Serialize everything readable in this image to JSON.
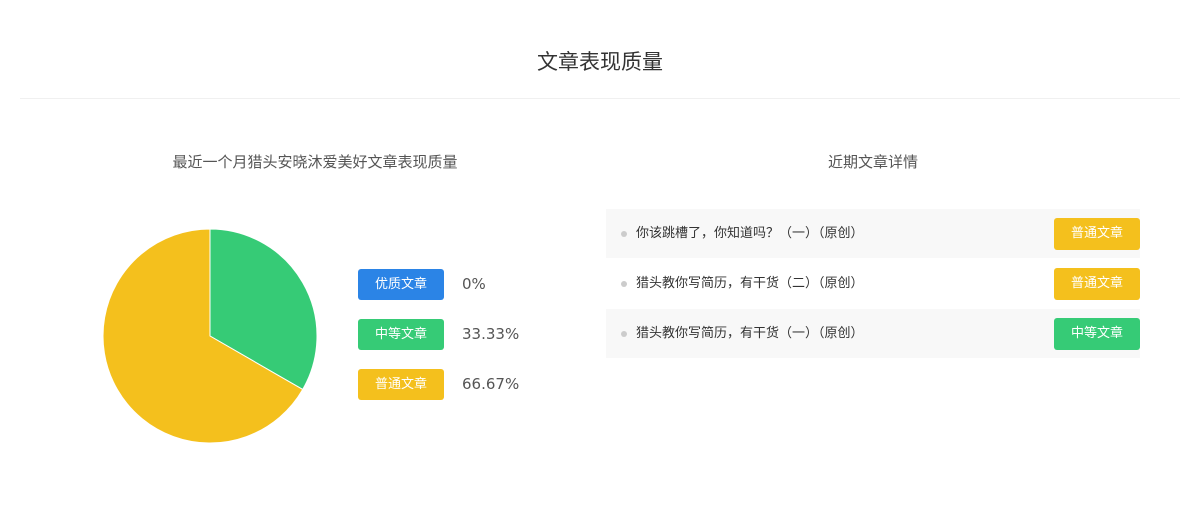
{
  "header": {
    "title": "文章表现质量"
  },
  "chart_data": {
    "type": "pie",
    "title": "最近一个月猎头安晓沐爱美好文章表现质量",
    "categories": [
      "优质文章",
      "中等文章",
      "普通文章"
    ],
    "values": [
      0,
      33.33,
      66.67
    ],
    "labels": [
      "0%",
      "33.33%",
      "66.67%"
    ],
    "colors": [
      "#2b84e6",
      "#36cb76",
      "#f4c01d"
    ],
    "legend_placement": "right"
  },
  "details": {
    "title": "近期文章详情",
    "items": [
      {
        "title": "你该跳槽了，你知道吗？（一）（原创）",
        "tag": "普通文章",
        "color": "#f4c01d"
      },
      {
        "title": "猎头教你写简历，有干货（二）（原创）",
        "tag": "普通文章",
        "color": "#f4c01d"
      },
      {
        "title": "猎头教你写简历，有干货（一）（原创）",
        "tag": "中等文章",
        "color": "#36cb76"
      }
    ]
  }
}
